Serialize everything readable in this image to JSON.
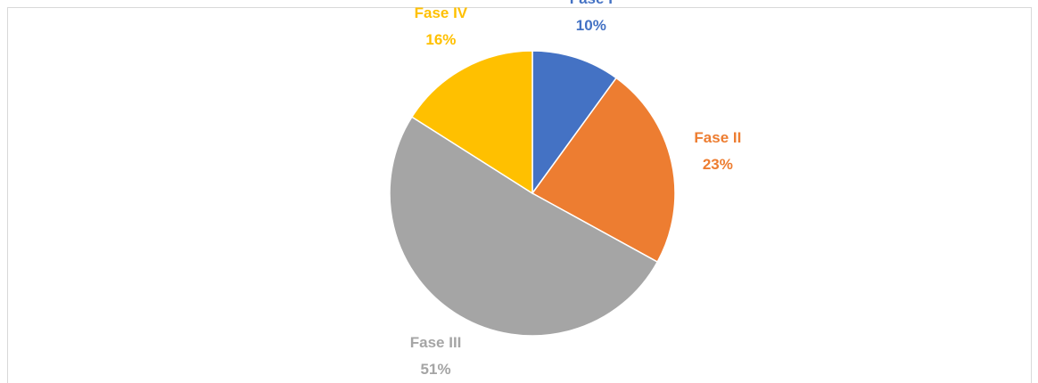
{
  "chart_data": {
    "type": "pie",
    "categories": [
      "Fase I",
      "Fase II",
      "Fase III",
      "Fase IV"
    ],
    "values": [
      10,
      23,
      51,
      16
    ],
    "value_labels": [
      "10%",
      "23%",
      "51%",
      "16%"
    ],
    "colors": [
      "#4472c4",
      "#ed7d31",
      "#a5a5a5",
      "#ffc000"
    ]
  }
}
